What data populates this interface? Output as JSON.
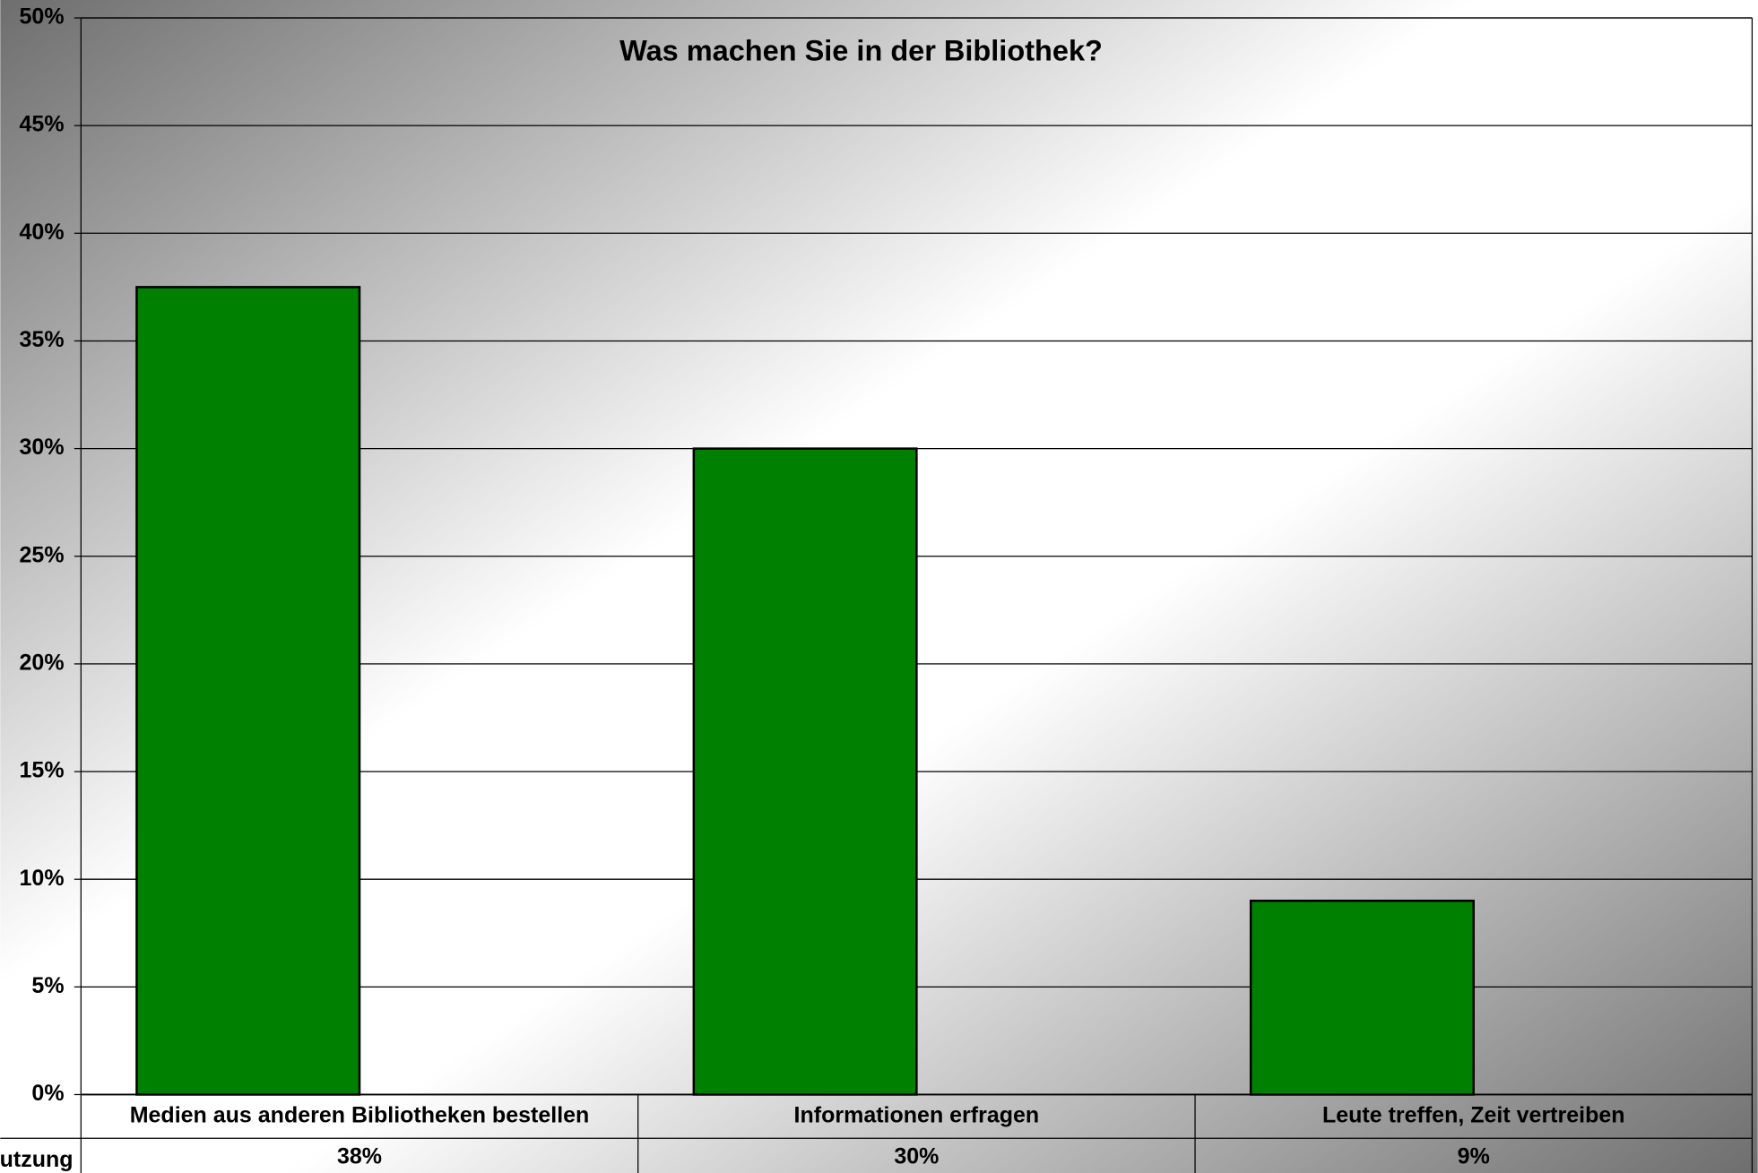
{
  "chart_data": {
    "type": "bar",
    "title": "Was machen Sie in der Bibliothek?",
    "categories": [
      "Medien aus anderen Bibliotheken bestellen",
      "Informationen erfragen",
      "Leute treffen, Zeit vertreiben"
    ],
    "series_name": "Nutzung",
    "values": [
      37.5,
      30,
      9
    ],
    "value_labels": [
      "38%",
      "30%",
      "9%"
    ],
    "color": "#008000",
    "ylim": [
      0,
      50
    ],
    "yticks": [
      {
        "value": 0,
        "label": "0%"
      },
      {
        "value": 5,
        "label": "5%"
      },
      {
        "value": 10,
        "label": "10%"
      },
      {
        "value": 15,
        "label": "15%"
      },
      {
        "value": 20,
        "label": "20%"
      },
      {
        "value": 25,
        "label": "25%"
      },
      {
        "value": 30,
        "label": "30%"
      },
      {
        "value": 35,
        "label": "35%"
      },
      {
        "value": 40,
        "label": "40%"
      },
      {
        "value": 45,
        "label": "45%"
      },
      {
        "value": 50,
        "label": "50%"
      }
    ],
    "grid": true
  }
}
